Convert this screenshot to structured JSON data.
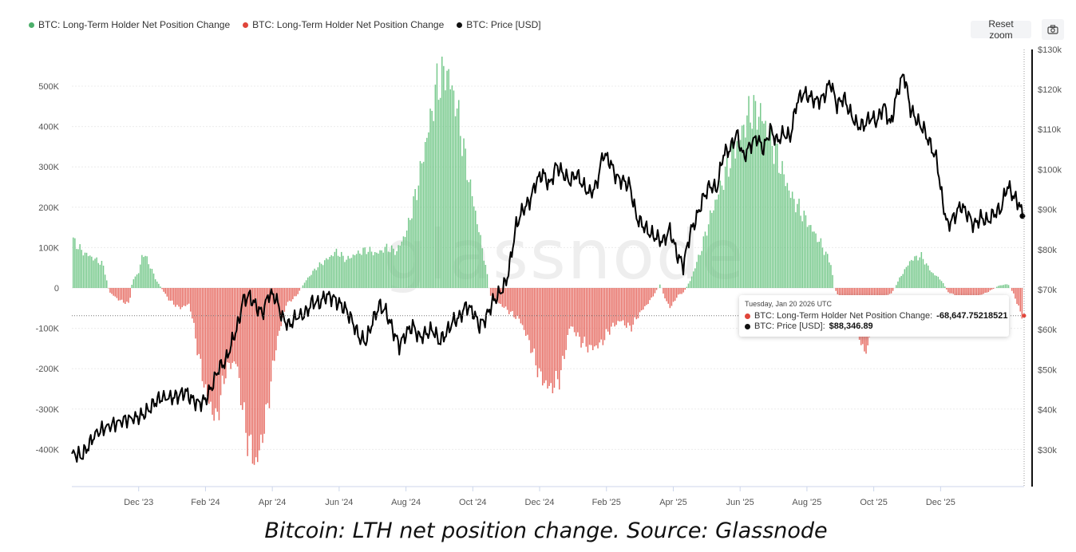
{
  "legend": {
    "items": [
      {
        "label": "BTC: Long-Term Holder Net Position Change",
        "color": "#4caf6a"
      },
      {
        "label": "BTC: Long-Term Holder Net Position Change",
        "color": "#e0453a"
      },
      {
        "label": "BTC: Price [USD]",
        "color": "#111111"
      }
    ]
  },
  "toolbar": {
    "reset_zoom_label": "Reset zoom",
    "camera_icon": "camera-icon"
  },
  "watermark": "glassnode",
  "tooltip": {
    "date": "Tuesday, Jan 20 2026 UTC",
    "row1_label": "BTC: Long-Term Holder Net Position Change: ",
    "row1_value": "-68,647.75218521",
    "row2_label": "BTC: Price [USD]: ",
    "row2_value": "$88,346.89"
  },
  "caption": "Bitcoin: LTH net position change. Source: Glassnode",
  "chart_data": {
    "type": "bar",
    "x_tick_labels": [
      "Dec '23",
      "Feb '24",
      "Apr '24",
      "Jun '24",
      "Aug '24",
      "Oct '24",
      "Dec '24",
      "Feb '25",
      "Apr '25",
      "Jun '25",
      "Aug '25",
      "Oct '25",
      "Dec '25"
    ],
    "y_left_ticks": [
      {
        "v": 500000,
        "label": "500K"
      },
      {
        "v": 400000,
        "label": "400K"
      },
      {
        "v": 300000,
        "label": "300K"
      },
      {
        "v": 200000,
        "label": "200K"
      },
      {
        "v": 100000,
        "label": "100K"
      },
      {
        "v": 0,
        "label": "0"
      },
      {
        "v": -100000,
        "label": "-100K"
      },
      {
        "v": -200000,
        "label": "-200K"
      },
      {
        "v": -300000,
        "label": "-300K"
      },
      {
        "v": -400000,
        "label": "-400K"
      }
    ],
    "y_right_ticks": [
      {
        "v": 130000,
        "label": "$130k"
      },
      {
        "v": 120000,
        "label": "$120k"
      },
      {
        "v": 110000,
        "label": "$110k"
      },
      {
        "v": 100000,
        "label": "$100k"
      },
      {
        "v": 90000,
        "label": "$90k"
      },
      {
        "v": 80000,
        "label": "$80k"
      },
      {
        "v": 70000,
        "label": "$70k"
      },
      {
        "v": 60000,
        "label": "$60k"
      },
      {
        "v": 50000,
        "label": "$50k"
      },
      {
        "v": 40000,
        "label": "$40k"
      },
      {
        "v": 30000,
        "label": "$30k"
      }
    ],
    "y_left_range": [
      -490000,
      500000
    ],
    "y_right_range": [
      21000,
      130000
    ],
    "x_range_months": [
      0,
      28.5
    ],
    "x_tick_positions_months": [
      2,
      4,
      6,
      8,
      10,
      12,
      14,
      16,
      18,
      20,
      22,
      24,
      26
    ],
    "net_position_change": [
      [
        0,
        120000
      ],
      [
        0.3,
        90000
      ],
      [
        0.6,
        75000
      ],
      [
        0.9,
        60000
      ],
      [
        1.0,
        30000
      ],
      [
        1.1,
        -10000
      ],
      [
        1.4,
        -30000
      ],
      [
        1.7,
        -40000
      ],
      [
        1.8,
        20000
      ],
      [
        2.0,
        40000
      ],
      [
        2.1,
        90000
      ],
      [
        2.3,
        60000
      ],
      [
        2.5,
        20000
      ],
      [
        2.7,
        -5000
      ],
      [
        2.9,
        -30000
      ],
      [
        3.2,
        -50000
      ],
      [
        3.5,
        -40000
      ],
      [
        3.6,
        -80000
      ],
      [
        3.8,
        -180000
      ],
      [
        4.0,
        -260000
      ],
      [
        4.3,
        -330000
      ],
      [
        4.6,
        -200000
      ],
      [
        4.9,
        -180000
      ],
      [
        5.2,
        -360000
      ],
      [
        5.5,
        -440000
      ],
      [
        5.8,
        -320000
      ],
      [
        6.1,
        -140000
      ],
      [
        6.4,
        -40000
      ],
      [
        6.7,
        -20000
      ],
      [
        7.0,
        20000
      ],
      [
        7.3,
        50000
      ],
      [
        7.6,
        70000
      ],
      [
        7.9,
        90000
      ],
      [
        8.2,
        70000
      ],
      [
        8.5,
        85000
      ],
      [
        8.8,
        95000
      ],
      [
        9.1,
        85000
      ],
      [
        9.4,
        100000
      ],
      [
        9.7,
        90000
      ],
      [
        10.0,
        140000
      ],
      [
        10.3,
        240000
      ],
      [
        10.6,
        370000
      ],
      [
        10.9,
        500000
      ],
      [
        11.2,
        540000
      ],
      [
        11.5,
        450000
      ],
      [
        11.8,
        300000
      ],
      [
        12.1,
        170000
      ],
      [
        12.4,
        40000
      ],
      [
        12.5,
        -20000
      ],
      [
        12.8,
        -40000
      ],
      [
        13.1,
        -60000
      ],
      [
        13.4,
        -80000
      ],
      [
        13.7,
        -140000
      ],
      [
        14.0,
        -220000
      ],
      [
        14.3,
        -250000
      ],
      [
        14.6,
        -220000
      ],
      [
        14.9,
        -90000
      ],
      [
        15.2,
        -130000
      ],
      [
        15.5,
        -150000
      ],
      [
        15.8,
        -140000
      ],
      [
        16.1,
        -100000
      ],
      [
        16.4,
        -80000
      ],
      [
        16.7,
        -100000
      ],
      [
        17.0,
        -60000
      ],
      [
        17.3,
        -30000
      ],
      [
        17.6,
        10000
      ],
      [
        17.7,
        -20000
      ],
      [
        17.9,
        -50000
      ],
      [
        18.1,
        -20000
      ],
      [
        18.3,
        -10000
      ],
      [
        18.5,
        20000
      ],
      [
        18.8,
        90000
      ],
      [
        19.1,
        180000
      ],
      [
        19.4,
        250000
      ],
      [
        19.7,
        320000
      ],
      [
        20.0,
        380000
      ],
      [
        20.3,
        440000
      ],
      [
        20.6,
        430000
      ],
      [
        20.9,
        370000
      ],
      [
        21.2,
        300000
      ],
      [
        21.5,
        230000
      ],
      [
        21.8,
        190000
      ],
      [
        22.1,
        150000
      ],
      [
        22.4,
        110000
      ],
      [
        22.7,
        60000
      ],
      [
        22.8,
        0
      ],
      [
        23.0,
        -30000
      ],
      [
        23.3,
        -60000
      ],
      [
        23.6,
        -140000
      ],
      [
        23.8,
        -160000
      ],
      [
        24.0,
        -30000
      ],
      [
        24.2,
        -20000
      ],
      [
        24.5,
        -15000
      ],
      [
        24.8,
        30000
      ],
      [
        25.1,
        70000
      ],
      [
        25.4,
        80000
      ],
      [
        25.7,
        40000
      ],
      [
        26.0,
        20000
      ],
      [
        26.2,
        -10000
      ],
      [
        26.5,
        -20000
      ],
      [
        26.8,
        -30000
      ],
      [
        27.1,
        -20000
      ],
      [
        27.4,
        -10000
      ],
      [
        27.7,
        5000
      ],
      [
        28.0,
        10000
      ],
      [
        28.2,
        -20000
      ],
      [
        28.4,
        -68648
      ]
    ],
    "price": [
      [
        0,
        29000
      ],
      [
        0.3,
        28500
      ],
      [
        0.5,
        31000
      ],
      [
        0.7,
        34000
      ],
      [
        1.0,
        35500
      ],
      [
        1.3,
        36500
      ],
      [
        1.6,
        37500
      ],
      [
        1.9,
        38000
      ],
      [
        2.1,
        38500
      ],
      [
        2.3,
        40000
      ],
      [
        2.5,
        42000
      ],
      [
        2.7,
        43000
      ],
      [
        3.0,
        43000
      ],
      [
        3.2,
        43500
      ],
      [
        3.4,
        44500
      ],
      [
        3.6,
        42500
      ],
      [
        3.8,
        41500
      ],
      [
        4.0,
        42500
      ],
      [
        4.2,
        46000
      ],
      [
        4.4,
        50500
      ],
      [
        4.6,
        52000
      ],
      [
        4.8,
        57000
      ],
      [
        5.0,
        62000
      ],
      [
        5.1,
        67000
      ],
      [
        5.3,
        68500
      ],
      [
        5.5,
        66000
      ],
      [
        5.7,
        64000
      ],
      [
        5.9,
        69000
      ],
      [
        6.1,
        68000
      ],
      [
        6.3,
        63000
      ],
      [
        6.5,
        61000
      ],
      [
        6.7,
        63000
      ],
      [
        7.0,
        64000
      ],
      [
        7.2,
        67000
      ],
      [
        7.4,
        66500
      ],
      [
        7.6,
        68500
      ],
      [
        7.8,
        68000
      ],
      [
        8.0,
        66500
      ],
      [
        8.2,
        65000
      ],
      [
        8.4,
        62000
      ],
      [
        8.6,
        58000
      ],
      [
        8.8,
        57000
      ],
      [
        9.0,
        62000
      ],
      [
        9.2,
        66000
      ],
      [
        9.4,
        64500
      ],
      [
        9.6,
        60000
      ],
      [
        9.8,
        56000
      ],
      [
        10.0,
        59000
      ],
      [
        10.2,
        61000
      ],
      [
        10.4,
        58000
      ],
      [
        10.6,
        59000
      ],
      [
        10.8,
        60000
      ],
      [
        11.0,
        57000
      ],
      [
        11.2,
        59000
      ],
      [
        11.4,
        62000
      ],
      [
        11.6,
        63000
      ],
      [
        11.8,
        66000
      ],
      [
        12.0,
        64500
      ],
      [
        12.2,
        61000
      ],
      [
        12.4,
        63000
      ],
      [
        12.6,
        67000
      ],
      [
        12.8,
        69000
      ],
      [
        13.0,
        72000
      ],
      [
        13.1,
        76000
      ],
      [
        13.3,
        86000
      ],
      [
        13.5,
        90000
      ],
      [
        13.7,
        92000
      ],
      [
        13.9,
        97000
      ],
      [
        14.1,
        99000
      ],
      [
        14.3,
        96000
      ],
      [
        14.5,
        101000
      ],
      [
        14.7,
        99000
      ],
      [
        14.9,
        97000
      ],
      [
        15.1,
        99000
      ],
      [
        15.3,
        96000
      ],
      [
        15.5,
        94000
      ],
      [
        15.7,
        96000
      ],
      [
        15.9,
        104000
      ],
      [
        16.1,
        102000
      ],
      [
        16.3,
        98000
      ],
      [
        16.5,
        97000
      ],
      [
        16.7,
        96000
      ],
      [
        16.9,
        88000
      ],
      [
        17.1,
        86000
      ],
      [
        17.3,
        84000
      ],
      [
        17.5,
        83000
      ],
      [
        17.7,
        82000
      ],
      [
        17.9,
        85000
      ],
      [
        18.1,
        79000
      ],
      [
        18.3,
        76000
      ],
      [
        18.5,
        84000
      ],
      [
        18.7,
        88000
      ],
      [
        18.9,
        93000
      ],
      [
        19.1,
        96000
      ],
      [
        19.3,
        95000
      ],
      [
        19.5,
        104000
      ],
      [
        19.7,
        105000
      ],
      [
        19.9,
        109000
      ],
      [
        20.1,
        103000
      ],
      [
        20.3,
        106000
      ],
      [
        20.5,
        108000
      ],
      [
        20.7,
        105000
      ],
      [
        20.9,
        110000
      ],
      [
        21.1,
        107000
      ],
      [
        21.3,
        109000
      ],
      [
        21.5,
        108000
      ],
      [
        21.7,
        117000
      ],
      [
        21.9,
        119000
      ],
      [
        22.1,
        118000
      ],
      [
        22.3,
        117000
      ],
      [
        22.5,
        118000
      ],
      [
        22.7,
        122000
      ],
      [
        22.9,
        116000
      ],
      [
        23.1,
        118000
      ],
      [
        23.3,
        114000
      ],
      [
        23.5,
        111000
      ],
      [
        23.7,
        111000
      ],
      [
        23.9,
        113000
      ],
      [
        24.1,
        112000
      ],
      [
        24.3,
        116000
      ],
      [
        24.5,
        111000
      ],
      [
        24.7,
        119000
      ],
      [
        24.9,
        124000
      ],
      [
        25.1,
        115000
      ],
      [
        25.3,
        112000
      ],
      [
        25.5,
        110000
      ],
      [
        25.7,
        106000
      ],
      [
        25.9,
        102000
      ],
      [
        26.0,
        95000
      ],
      [
        26.2,
        86000
      ],
      [
        26.4,
        88000
      ],
      [
        26.6,
        91000
      ],
      [
        26.8,
        89000
      ],
      [
        27.0,
        86000
      ],
      [
        27.2,
        88000
      ],
      [
        27.4,
        87000
      ],
      [
        27.6,
        89000
      ],
      [
        27.8,
        90000
      ],
      [
        28.0,
        96000
      ],
      [
        28.2,
        93000
      ],
      [
        28.35,
        91500
      ],
      [
        28.45,
        88346.89
      ]
    ]
  }
}
